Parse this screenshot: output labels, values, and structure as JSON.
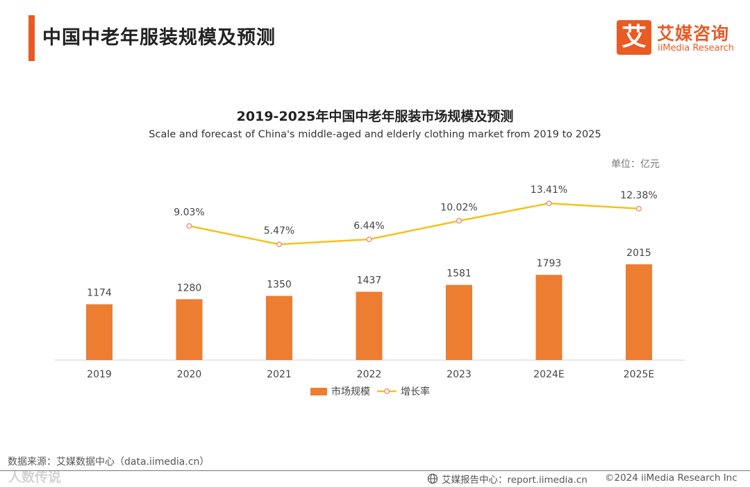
{
  "header": {
    "title": "中国中老年服装规模及预测"
  },
  "logo": {
    "char": "艾",
    "cn": "艾媒咨询",
    "en": "iiMedia Research"
  },
  "unit": "单位：亿元",
  "colors": {
    "accent": "#ea5a24",
    "bar": "#ed7d31",
    "line": "#f6c118"
  },
  "chart_data": {
    "type": "bar",
    "title": "2019-2025年中国中老年服装市场规模及预测",
    "subtitle": "Scale and forecast of China's middle-aged and elderly clothing market from 2019 to 2025",
    "categories": [
      "2019",
      "2020",
      "2021",
      "2022",
      "2023",
      "2024E",
      "2025E"
    ],
    "series": [
      {
        "name": "市场规模",
        "type": "bar",
        "values": [
          1174,
          1280,
          1350,
          1437,
          1581,
          1793,
          2015
        ]
      },
      {
        "name": "增长率",
        "type": "line",
        "values": [
          null,
          9.03,
          5.47,
          6.44,
          10.02,
          13.41,
          12.38
        ],
        "labels": [
          "",
          "9.03%",
          "5.47%",
          "6.44%",
          "10.02%",
          "13.41%",
          "12.38%"
        ]
      }
    ],
    "legend_position": "bottom"
  },
  "footer": {
    "source": "数据来源：艾媒数据中心（data.iimedia.cn）",
    "watermark": "人数传说",
    "report": "艾媒报告中心：report.iimedia.cn",
    "copyright": "©2024  iiMedia Research Inc"
  }
}
